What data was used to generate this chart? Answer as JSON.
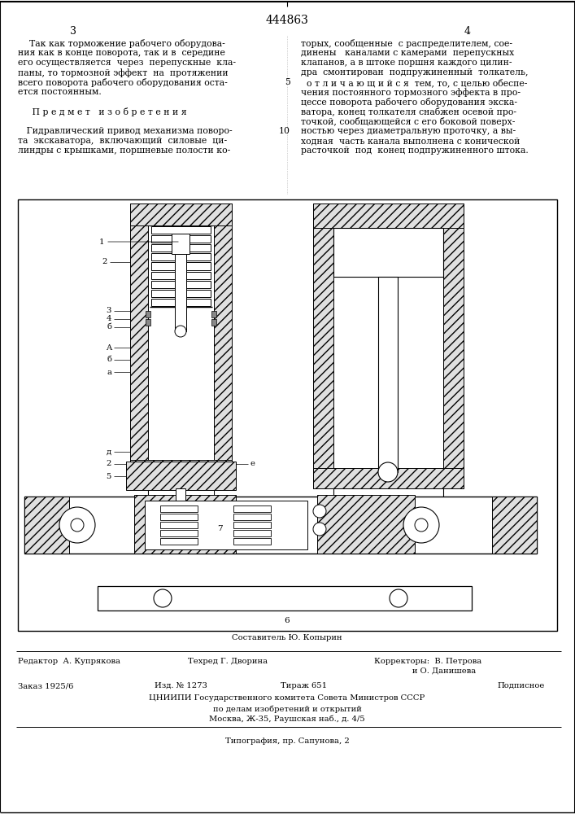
{
  "patent_number": "444863",
  "page_left": "3",
  "page_right": "4",
  "left_col": [
    "    Так как торможение рабочего оборудова-",
    "ния как в конце поворота, так и в  середине",
    "его осуществляется  через  перепускные  кла-",
    "паны, то тормозной эффект  на  протяжении",
    "всего поворота рабочего оборудования оста-",
    "ется постоянным.",
    "",
    "     П р е д м е т   и з о б р е т е н и я",
    "",
    "   Гидравлический привод механизма поворо-",
    "та  экскаватора,  включающий  силовые  ци-",
    "линдры с крышками, поршневые полости ко-"
  ],
  "right_col": [
    "торых, сообщенные  с распределителем, сое-",
    "динены   каналами с камерами  перепускных",
    "клапанов, а в штоке поршня каждого цилин-",
    "дра  смонтирован  подпружиненный  толкатель,",
    "  о т л и ч а ю щ и й с я  тем, то, с целью обеспе-",
    "чения постоянного тормозного эффекта в про-",
    "цессе поворота рабочего оборудования экска-",
    "ватора, конец толкателя снабжен осевой про-",
    "точкой, сообщающейся с его боковой поверх-",
    "ностью через диаметральную проточку, а вы-",
    "ходная  часть канала выполнена с конической",
    "расточкой  под  конец подпружиненного штока."
  ],
  "marker5_line": 4,
  "marker10_line": 9,
  "footer_composer": "Составитель Ю. Копырин",
  "footer_editor": "Редактор  А. Купрякова",
  "footer_tech": "Техред Г. Дворина",
  "footer_corr1": "Корректоры:  В. Петрова",
  "footer_corr2": "               и О. Данишева",
  "footer_order": "Заказ 1925/6",
  "footer_izd": "Изд. № 1273",
  "footer_tirazh": "Тираж 651",
  "footer_podpisnoe": "Подписное",
  "footer_tsniipis": "ЦНИИПИ Государственного комитета Совета Министров СССР",
  "footer_dela": "по делам изобретений и открытий",
  "footer_moscow": "Москва, Ж-35, Раушская наб., д. 4/5",
  "footer_tipografia": "Типография, пр. Сапунова, 2"
}
